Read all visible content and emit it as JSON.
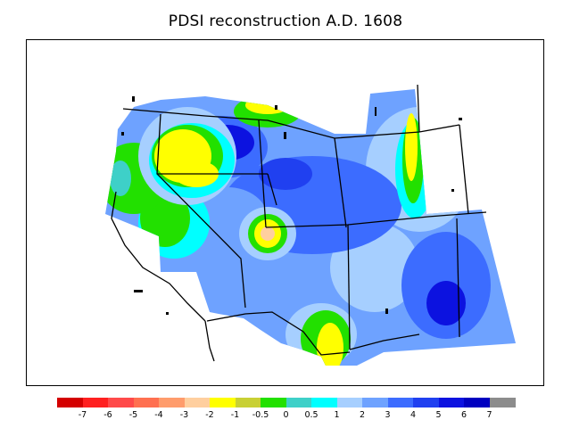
{
  "title": "PDSI reconstruction A.D. 1608",
  "legend": {
    "colors": [
      "#d40000",
      "#ff2020",
      "#ff4a4a",
      "#ff7050",
      "#ff9c6c",
      "#ffcf9f",
      "#ffff00",
      "#c8d034",
      "#22e000",
      "#3ed0c8",
      "#00ffff",
      "#a6cfff",
      "#6ea2ff",
      "#3c6cff",
      "#2040f0",
      "#0c12e0",
      "#0000c0",
      "#8c8c8c"
    ],
    "tick_labels": [
      "-7",
      "-6",
      "-5",
      "-4",
      "-3",
      "-2",
      "-1",
      "-0.5",
      "0",
      "0.5",
      "1",
      "2",
      "3",
      "4",
      "5",
      "6",
      "7"
    ]
  }
}
